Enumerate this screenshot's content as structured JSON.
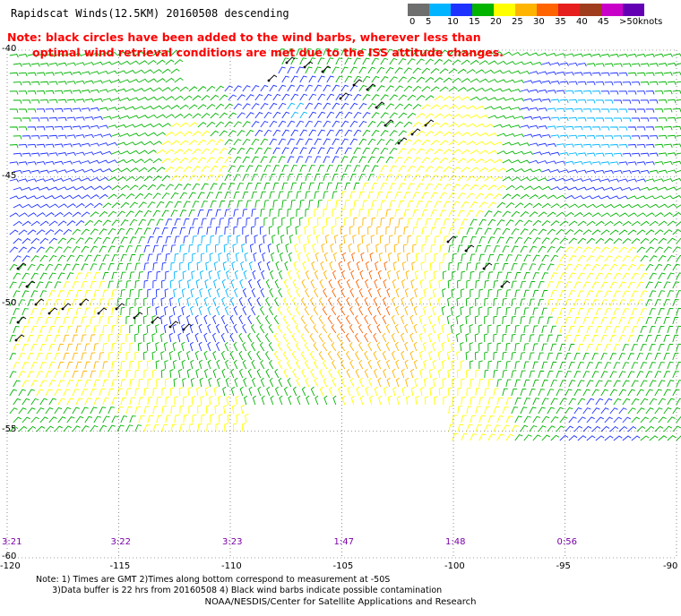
{
  "title": "Rapidscat Winds(12.5KM) 20160508 descending",
  "note": {
    "line1": "Note: black circles have been added to the wind barbs, wherever less than",
    "line2": "optimal wind retrieval conditions are met due to the ISS attitude changes."
  },
  "legend": {
    "unit": "knots",
    "items": [
      {
        "label": "0",
        "color": "#6e6e6e"
      },
      {
        "label": "5",
        "color": "#00b4ff"
      },
      {
        "label": "10",
        "color": "#1e32ff"
      },
      {
        "label": "15",
        "color": "#00b400"
      },
      {
        "label": "20",
        "color": "#ffff00"
      },
      {
        "label": "25",
        "color": "#ffb400"
      },
      {
        "label": "30",
        "color": "#ff6400"
      },
      {
        "label": "35",
        "color": "#e61e1e"
      },
      {
        "label": "40",
        "color": "#a03c1e"
      },
      {
        "label": "45",
        "color": "#c800c8"
      },
      {
        "label": ">50",
        "color": "#6400b4"
      }
    ]
  },
  "map": {
    "lon_range": [
      -120,
      -90
    ],
    "lat_range": [
      -60,
      -40
    ],
    "lon_ticks": [
      "-120",
      "-115",
      "-110",
      "-105",
      "-100",
      "-95",
      "-90"
    ],
    "lat_ticks": [
      "-40",
      "-45",
      "-50",
      "-55",
      "-60"
    ]
  },
  "pass_times": [
    {
      "label": "3:21",
      "lon": -120
    },
    {
      "label": "3:22",
      "lon": -115
    },
    {
      "label": "3:23",
      "lon": -110
    },
    {
      "label": "1:47",
      "lon": -105
    },
    {
      "label": "1:48",
      "lon": -100
    },
    {
      "label": "0:56",
      "lon": -95
    }
  ],
  "footnote": {
    "line1": "Note: 1) Times are GMT 2)Times along bottom correspond to measurement at -50S",
    "line2": "3)Data buffer is 22 hrs from 20160508 4) Black wind barbs indicate possible contamination"
  },
  "credit": "NOAA/NESDIS/Center for Satellite Applications and Research"
}
